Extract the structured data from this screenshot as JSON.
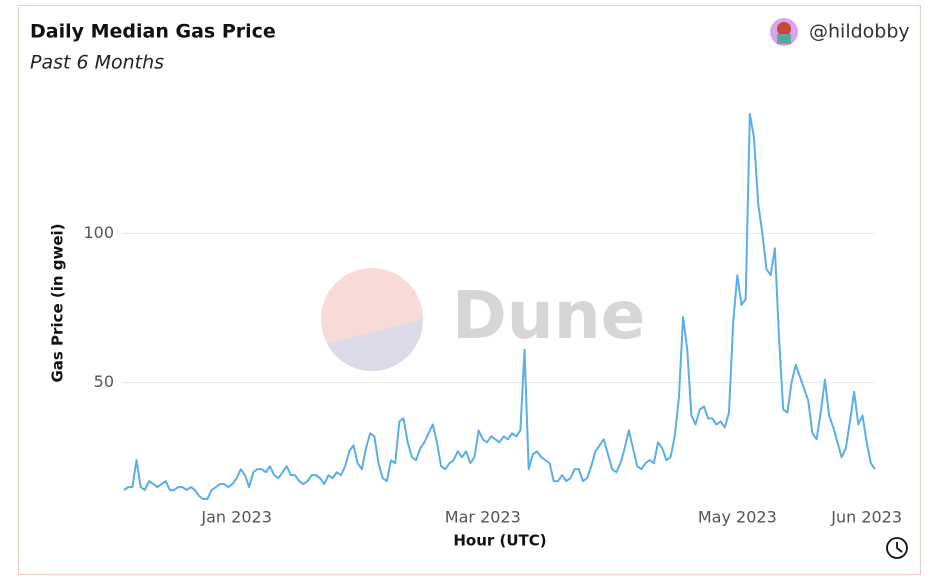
{
  "chart_data": {
    "type": "line",
    "title": "Daily Median Gas Price",
    "subtitle": "Past 6 Months",
    "author": "@hildobby",
    "watermark": "Dune",
    "x_label": "Hour (UTC)",
    "y_label": "Gas Price (in gwei)",
    "color": "#5aaee9",
    "grid": true,
    "xlim": [
      0,
      180
    ],
    "xticks": [
      {
        "value": 27,
        "label": "Jan 2023"
      },
      {
        "value": 86,
        "label": "Mar 2023"
      },
      {
        "value": 147,
        "label": "May 2023"
      },
      {
        "value": 178,
        "label": "Jun 2023"
      }
    ],
    "ylim": [
      9,
      143
    ],
    "yticks": [
      50,
      100
    ],
    "values": [
      14,
      15,
      15,
      24,
      15,
      14,
      17,
      16,
      15,
      16,
      17,
      14,
      14,
      15,
      15,
      14,
      15,
      14,
      12,
      11,
      11,
      14,
      15,
      16,
      16,
      15,
      16,
      18,
      21,
      19,
      15,
      20,
      21,
      21,
      20,
      22,
      19,
      18,
      20,
      22,
      19,
      19,
      17,
      16,
      17,
      19,
      19,
      18,
      16,
      19,
      18,
      20,
      19,
      22,
      27,
      29,
      23,
      21,
      28,
      33,
      32,
      23,
      18,
      17,
      24,
      23,
      37,
      38,
      30,
      25,
      24,
      28,
      30,
      33,
      36,
      30,
      22,
      21,
      23,
      24,
      27,
      25,
      27,
      23,
      25,
      34,
      31,
      30,
      32,
      31,
      30,
      32,
      31,
      33,
      32,
      34,
      61,
      21,
      26,
      27,
      25,
      24,
      23,
      17,
      17,
      19,
      17,
      18,
      21,
      21,
      17,
      18,
      22,
      27,
      29,
      31,
      26,
      21,
      20,
      23,
      28,
      34,
      28,
      22,
      21,
      23,
      24,
      23,
      30,
      28,
      24,
      25,
      32,
      45,
      72,
      61,
      39,
      36,
      41,
      42,
      38,
      38,
      36,
      37,
      35,
      40,
      70,
      86,
      76,
      78,
      140,
      132,
      110,
      100,
      88,
      86,
      95,
      65,
      41,
      40,
      50,
      56,
      52,
      48,
      44,
      33,
      31,
      40,
      51,
      39,
      35,
      30,
      25,
      28,
      37,
      47,
      36,
      39,
      30,
      23,
      21
    ]
  }
}
